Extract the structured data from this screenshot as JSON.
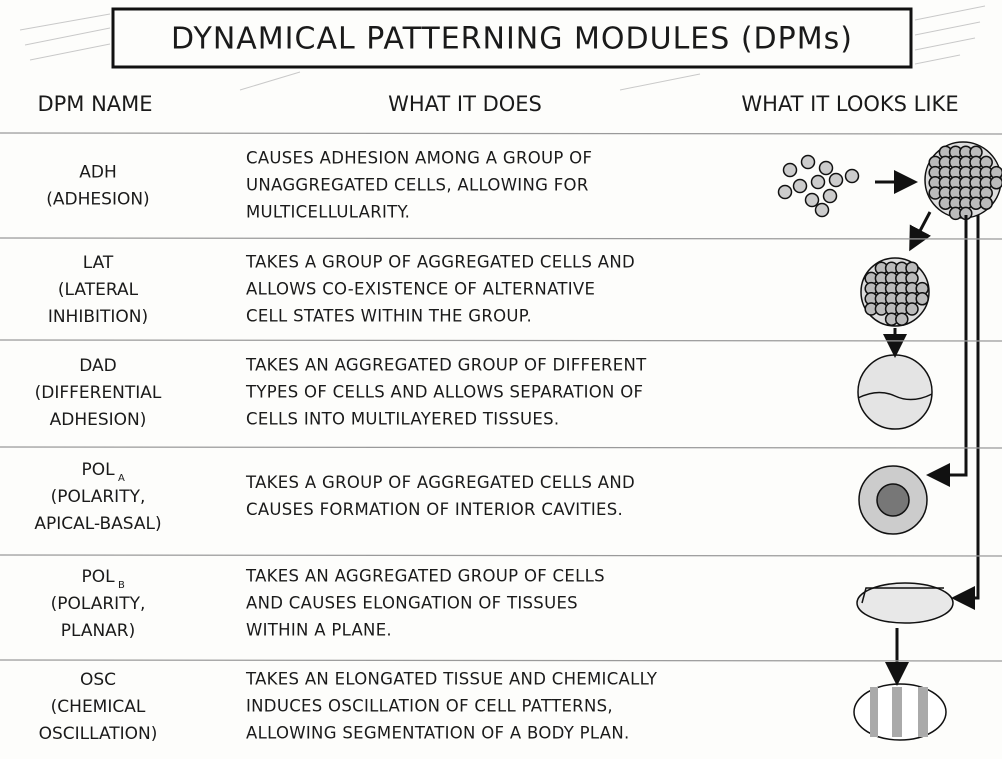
{
  "title": "DYNAMICAL PATTERNING MODULES (DPMs)",
  "headers": [
    "DPM NAME",
    "WHAT IT DOES",
    "WHAT IT LOOKS LIKE"
  ],
  "rows": [
    {
      "name": [
        "ADH",
        "(ADHESION)"
      ],
      "description": [
        "CAUSES ADHESION AMONG A GROUP OF",
        "UNAGGREGATED CELLS, ALLOWING FOR",
        "MULTICELLULARITY."
      ]
    },
    {
      "name": [
        "LAT",
        "(LATERAL",
        "INHIBITION)"
      ],
      "description": [
        "TAKES A GROUP OF AGGREGATED CELLS AND",
        "ALLOWS CO-EXISTENCE OF ALTERNATIVE",
        "CELL STATES WITHIN THE GROUP."
      ]
    },
    {
      "name": [
        "DAD",
        "(DIFFERENTIAL",
        "ADHESION)"
      ],
      "description": [
        "TAKES AN AGGREGATED GROUP OF DIFFERENT",
        "TYPES OF CELLS AND ALLOWS SEPARATION OF",
        "CELLS INTO MULTILAYERED TISSUES."
      ]
    },
    {
      "name": [
        "POL",
        "(POLARITY,",
        "APICAL-BASAL)"
      ],
      "subscript": "A",
      "description": [
        "TAKES A GROUP OF AGGREGATED CELLS AND",
        "CAUSES FORMATION OF INTERIOR CAVITIES."
      ]
    },
    {
      "name": [
        "POL",
        "(POLARITY,",
        "PLANAR)"
      ],
      "subscript": "B",
      "description": [
        "TAKES AN AGGREGATED GROUP OF CELLS",
        "AND CAUSES ELONGATION OF TISSUES",
        "WITHIN A PLANE."
      ]
    },
    {
      "name": [
        "OSC",
        "(CHEMICAL",
        "OSCILLATION)"
      ],
      "description": [
        "TAKES AN ELONGATED TISSUE AND CHEMICALLY",
        "INDUCES OSCILLATION OF CELL PATTERNS,",
        "ALLOWING SEGMENTATION OF A BODY PLAN."
      ]
    }
  ]
}
